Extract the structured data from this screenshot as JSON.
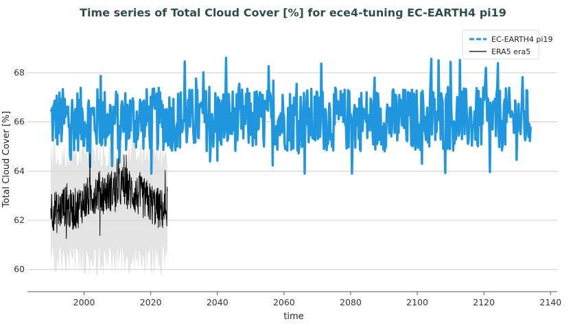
{
  "chart_data": {
    "type": "line",
    "title": "Time series of Total Cloud Cover [%] for ece4-tuning EC-EARTH4 pi19",
    "xlabel": "time",
    "ylabel": "Total Cloud Cover [%]",
    "xlim": [
      1983,
      2142
    ],
    "ylim": [
      59.1,
      69.7
    ],
    "xticks": [
      2000,
      2020,
      2040,
      2060,
      2080,
      2100,
      2120,
      2140
    ],
    "yticks": [
      60,
      62,
      64,
      66,
      68
    ],
    "grid": true,
    "legend_position": "top-right",
    "colors": {
      "ecearth": "#1f96dd",
      "era5": "#000000",
      "era5_band": "#d9d9d9"
    },
    "series": [
      {
        "name": "EC-EARTH4 pi19",
        "style": "dashed-thick",
        "x_range": [
          1990,
          2134
        ],
        "mean": 66.1,
        "typical_min": 64.8,
        "typical_max": 67.4,
        "extreme_min": 63.9,
        "extreme_max": 68.8
      },
      {
        "name": "ERA5 era5",
        "style": "solid-thin",
        "x_range": [
          1990,
          2025
        ],
        "envelope_min": 59.7,
        "envelope_max": 65.3,
        "points": [
          [
            1990,
            62.5
          ],
          [
            1992,
            62.3
          ],
          [
            1994,
            62.6
          ],
          [
            1996,
            62.4
          ],
          [
            1998,
            62.5
          ],
          [
            2000,
            62.8
          ],
          [
            2002,
            63.0
          ],
          [
            2004,
            63.2
          ],
          [
            2006,
            63.1
          ],
          [
            2008,
            63.2
          ],
          [
            2010,
            63.3
          ],
          [
            2012,
            63.4
          ],
          [
            2014,
            63.2
          ],
          [
            2016,
            63.0
          ],
          [
            2018,
            62.9
          ],
          [
            2020,
            62.7
          ],
          [
            2022,
            62.5
          ],
          [
            2024,
            62.4
          ],
          [
            2025,
            62.6
          ]
        ]
      }
    ]
  }
}
